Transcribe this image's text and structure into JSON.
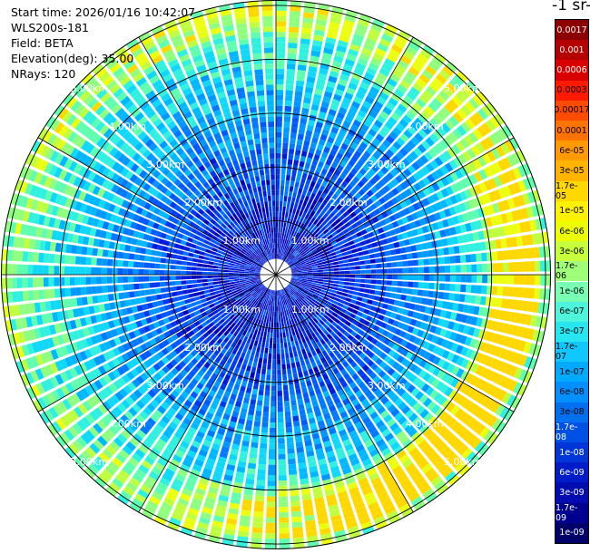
{
  "info": {
    "start_time": "Start time: 2026/01/16 10:42:07",
    "instrument": "WLS200s-181",
    "field": "Field: BETA",
    "elevation": "Elevation(deg): 35.00",
    "nrays": "NRays: 120"
  },
  "colorbar": {
    "title_fragment": "-1 sr-",
    "labels": [
      "0.0017",
      "0.001",
      "0.0006",
      "0.0003",
      "0.00017",
      "0.0001",
      "6e-05",
      "3e-05",
      "1.7e-05",
      "1e-05",
      "6e-06",
      "3e-06",
      "1.7e-06",
      "1e-06",
      "6e-07",
      "3e-07",
      "1.7e-07",
      "1e-07",
      "6e-08",
      "3e-08",
      "1.7e-08",
      "1e-08",
      "6e-09",
      "3e-09",
      "1.7e-09",
      "1e-09"
    ],
    "colors": [
      "#8b0000",
      "#b40000",
      "#d80000",
      "#ff1a00",
      "#ff4c00",
      "#ff7300",
      "#ff9a00",
      "#ffb400",
      "#ffd800",
      "#fff200",
      "#ecff00",
      "#c8ff3c",
      "#a0ff78",
      "#78ffb4",
      "#4cf5dc",
      "#28e6f0",
      "#10c8ff",
      "#00aaff",
      "#0090ff",
      "#0070f0",
      "#0050e6",
      "#0036d8",
      "#001cc8",
      "#000cb0",
      "#000090",
      "#00006a"
    ]
  },
  "range_rings": {
    "labels": [
      "1.00km",
      "2.00km",
      "3.00km",
      "4.00km",
      "5.00km"
    ]
  },
  "chart_data": {
    "type": "heatmap",
    "projection": "polar PPI scan",
    "rays": 120,
    "field": "BETA",
    "range_rings_km": [
      1,
      2,
      3,
      4,
      5
    ],
    "max_range_km": 5.1,
    "colormap": "jet",
    "color_scale": "log"
  }
}
